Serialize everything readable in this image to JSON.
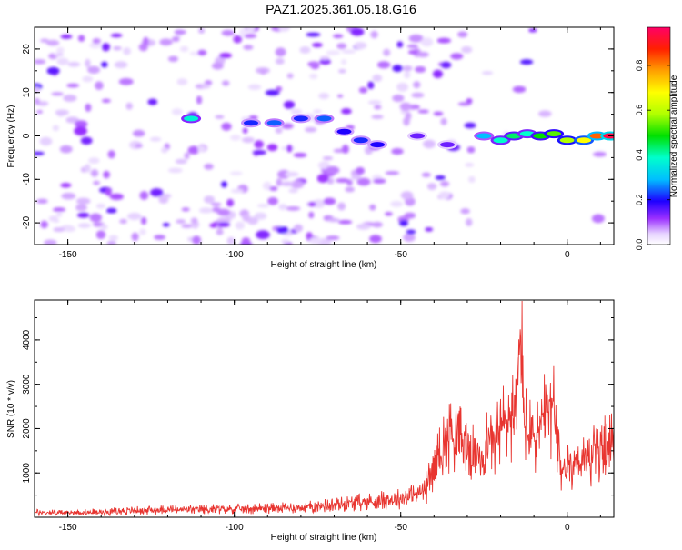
{
  "title": "PAZ1.2025.361.05.18.G16",
  "chart_data": [
    {
      "type": "heatmap",
      "xlabel": "Height of straight line (km)",
      "ylabel": "Frequency (Hz)",
      "xlim": [
        -160,
        14
      ],
      "ylim": [
        -25,
        25
      ],
      "xticks": [
        -150,
        -100,
        -50,
        0
      ],
      "yticks": [
        -20,
        -10,
        0,
        10,
        20
      ],
      "colorbar": {
        "label": "Normalized spectral amplitude",
        "range": [
          0,
          0.97
        ],
        "ticks": [
          0,
          0.2,
          0.4,
          0.6,
          0.8
        ]
      },
      "ridge": [
        {
          "x": -113,
          "y": 4,
          "v": 0.38
        },
        {
          "x": -95,
          "y": 3,
          "v": 0.22
        },
        {
          "x": -88,
          "y": 3,
          "v": 0.25
        },
        {
          "x": -80,
          "y": 4,
          "v": 0.22
        },
        {
          "x": -73,
          "y": 4,
          "v": 0.25
        },
        {
          "x": -67,
          "y": 1,
          "v": 0.2
        },
        {
          "x": -62,
          "y": -1,
          "v": 0.22
        },
        {
          "x": -57,
          "y": -2,
          "v": 0.2
        },
        {
          "x": -45,
          "y": 0,
          "v": 0.15
        },
        {
          "x": -36,
          "y": -2,
          "v": 0.15
        },
        {
          "x": -25,
          "y": 0,
          "v": 0.3
        },
        {
          "x": -20,
          "y": -1,
          "v": 0.4
        },
        {
          "x": -16,
          "y": 0,
          "v": 0.45
        },
        {
          "x": -12,
          "y": 0.5,
          "v": 0.4
        },
        {
          "x": -8,
          "y": 0,
          "v": 0.5
        },
        {
          "x": -4,
          "y": 0.5,
          "v": 0.55
        },
        {
          "x": 0,
          "y": -1,
          "v": 0.6
        },
        {
          "x": 5,
          "y": -1,
          "v": 0.7
        },
        {
          "x": 9,
          "y": 0,
          "v": 0.85
        },
        {
          "x": 13,
          "y": 0,
          "v": 0.97
        }
      ]
    },
    {
      "type": "line",
      "xlabel": "Height of straight line (km)",
      "ylabel": "SNR (10 * v/v)",
      "xlim": [
        -160,
        14
      ],
      "ylim": [
        0,
        4900
      ],
      "xticks": [
        -150,
        -100,
        -50,
        0
      ],
      "yticks": [
        1000,
        2000,
        3000,
        4000
      ],
      "series": [
        {
          "name": "SNR",
          "x": [
            -160,
            -150,
            -140,
            -130,
            -120,
            -110,
            -100,
            -90,
            -80,
            -70,
            -60,
            -55,
            -50,
            -45,
            -42,
            -40,
            -38,
            -36,
            -35,
            -34,
            -32,
            -30,
            -28,
            -26,
            -24,
            -22,
            -20,
            -18,
            -16,
            -15,
            -14,
            -13,
            -12,
            -10,
            -8,
            -6,
            -5,
            -4,
            -3,
            -2,
            0,
            2,
            4,
            6,
            8,
            10,
            12,
            14
          ],
          "y": [
            110,
            100,
            120,
            150,
            170,
            180,
            190,
            200,
            220,
            280,
            350,
            380,
            420,
            520,
            700,
            1200,
            1500,
            1800,
            2100,
            1900,
            1700,
            1550,
            1450,
            1350,
            1650,
            1750,
            2000,
            2200,
            2300,
            2600,
            4100,
            2400,
            1900,
            1800,
            2000,
            2300,
            2500,
            2400,
            1500,
            1100,
            1100,
            1250,
            1350,
            1300,
            1400,
            1500,
            1550,
            1650
          ]
        }
      ],
      "color": "#e83530"
    }
  ]
}
